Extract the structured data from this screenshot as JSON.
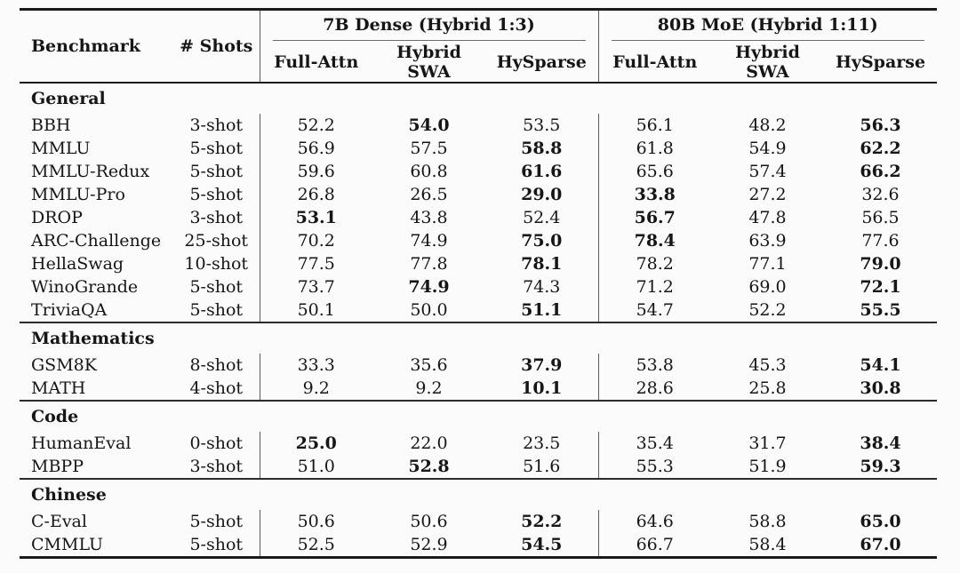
{
  "table": {
    "headers": {
      "benchmark": "Benchmark",
      "shots": "# Shots",
      "groups": [
        {
          "label": "7B Dense (Hybrid 1:3)",
          "columns": [
            "Full-Attn",
            "Hybrid SWA",
            "HySparse"
          ]
        },
        {
          "label": "80B MoE (Hybrid 1:11)",
          "columns": [
            "Full-Attn",
            "Hybrid SWA",
            "HySparse"
          ]
        }
      ]
    },
    "sections": [
      {
        "title": "General",
        "rows": [
          {
            "benchmark": "BBH",
            "shots": "3-shot",
            "values": [
              "52.2",
              "54.0",
              "53.5",
              "56.1",
              "48.2",
              "56.3"
            ],
            "bold": [
              false,
              true,
              false,
              false,
              false,
              true
            ]
          },
          {
            "benchmark": "MMLU",
            "shots": "5-shot",
            "values": [
              "56.9",
              "57.5",
              "58.8",
              "61.8",
              "54.9",
              "62.2"
            ],
            "bold": [
              false,
              false,
              true,
              false,
              false,
              true
            ]
          },
          {
            "benchmark": "MMLU-Redux",
            "shots": "5-shot",
            "values": [
              "59.6",
              "60.8",
              "61.6",
              "65.6",
              "57.4",
              "66.2"
            ],
            "bold": [
              false,
              false,
              true,
              false,
              false,
              true
            ]
          },
          {
            "benchmark": "MMLU-Pro",
            "shots": "5-shot",
            "values": [
              "26.8",
              "26.5",
              "29.0",
              "33.8",
              "27.2",
              "32.6"
            ],
            "bold": [
              false,
              false,
              true,
              true,
              false,
              false
            ]
          },
          {
            "benchmark": "DROP",
            "shots": "3-shot",
            "values": [
              "53.1",
              "43.8",
              "52.4",
              "56.7",
              "47.8",
              "56.5"
            ],
            "bold": [
              true,
              false,
              false,
              true,
              false,
              false
            ]
          },
          {
            "benchmark": "ARC-Challenge",
            "shots": "25-shot",
            "values": [
              "70.2",
              "74.9",
              "75.0",
              "78.4",
              "63.9",
              "77.6"
            ],
            "bold": [
              false,
              false,
              true,
              true,
              false,
              false
            ]
          },
          {
            "benchmark": "HellaSwag",
            "shots": "10-shot",
            "values": [
              "77.5",
              "77.8",
              "78.1",
              "78.2",
              "77.1",
              "79.0"
            ],
            "bold": [
              false,
              false,
              true,
              false,
              false,
              true
            ]
          },
          {
            "benchmark": "WinoGrande",
            "shots": "5-shot",
            "values": [
              "73.7",
              "74.9",
              "74.3",
              "71.2",
              "69.0",
              "72.1"
            ],
            "bold": [
              false,
              true,
              false,
              false,
              false,
              true
            ]
          },
          {
            "benchmark": "TriviaQA",
            "shots": "5-shot",
            "values": [
              "50.1",
              "50.0",
              "51.1",
              "54.7",
              "52.2",
              "55.5"
            ],
            "bold": [
              false,
              false,
              true,
              false,
              false,
              true
            ]
          }
        ]
      },
      {
        "title": "Mathematics",
        "rows": [
          {
            "benchmark": "GSM8K",
            "shots": "8-shot",
            "values": [
              "33.3",
              "35.6",
              "37.9",
              "53.8",
              "45.3",
              "54.1"
            ],
            "bold": [
              false,
              false,
              true,
              false,
              false,
              true
            ]
          },
          {
            "benchmark": "MATH",
            "shots": "4-shot",
            "values": [
              "9.2",
              "9.2",
              "10.1",
              "28.6",
              "25.8",
              "30.8"
            ],
            "bold": [
              false,
              false,
              true,
              false,
              false,
              true
            ]
          }
        ]
      },
      {
        "title": "Code",
        "rows": [
          {
            "benchmark": "HumanEval",
            "shots": "0-shot",
            "values": [
              "25.0",
              "22.0",
              "23.5",
              "35.4",
              "31.7",
              "38.4"
            ],
            "bold": [
              true,
              false,
              false,
              false,
              false,
              true
            ]
          },
          {
            "benchmark": "MBPP",
            "shots": "3-shot",
            "values": [
              "51.0",
              "52.8",
              "51.6",
              "55.3",
              "51.9",
              "59.3"
            ],
            "bold": [
              false,
              true,
              false,
              false,
              false,
              true
            ]
          }
        ]
      },
      {
        "title": "Chinese",
        "rows": [
          {
            "benchmark": "C-Eval",
            "shots": "5-shot",
            "values": [
              "50.6",
              "50.6",
              "52.2",
              "64.6",
              "58.8",
              "65.0"
            ],
            "bold": [
              false,
              false,
              true,
              false,
              false,
              true
            ]
          },
          {
            "benchmark": "CMMLU",
            "shots": "5-shot",
            "values": [
              "52.5",
              "52.9",
              "54.5",
              "66.7",
              "58.4",
              "67.0"
            ],
            "bold": [
              false,
              false,
              true,
              false,
              false,
              true
            ]
          }
        ]
      }
    ]
  },
  "colors": {
    "background": "#fbfbfb",
    "text": "#161616",
    "rule_heavy": "#1b1b1b",
    "rule_section": "#2a2a2a",
    "rule_cmid": "#6d6d6d",
    "vertical_bar": "#5a5a5a"
  }
}
